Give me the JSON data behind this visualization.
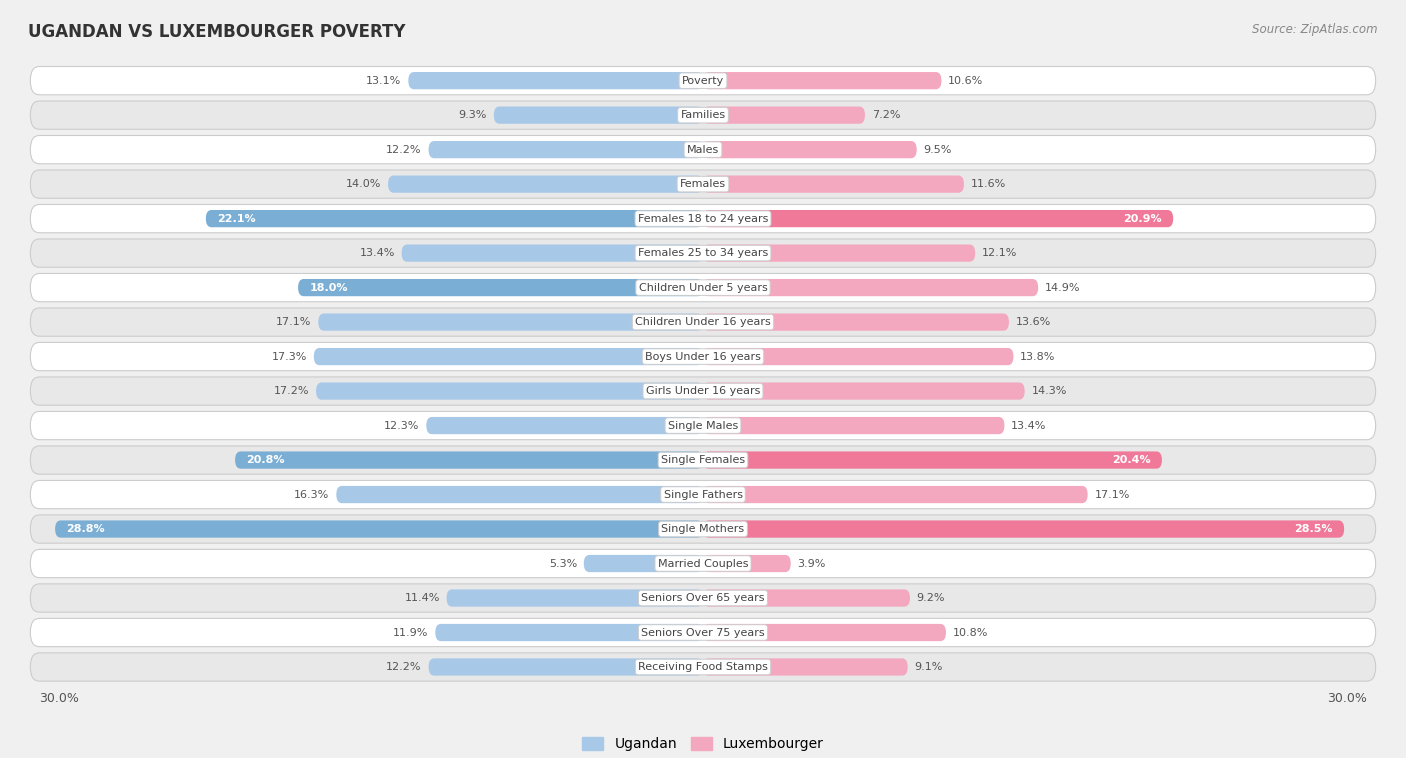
{
  "title": "UGANDAN VS LUXEMBOURGER POVERTY",
  "source": "Source: ZipAtlas.com",
  "categories": [
    "Poverty",
    "Families",
    "Males",
    "Females",
    "Females 18 to 24 years",
    "Females 25 to 34 years",
    "Children Under 5 years",
    "Children Under 16 years",
    "Boys Under 16 years",
    "Girls Under 16 years",
    "Single Males",
    "Single Females",
    "Single Fathers",
    "Single Mothers",
    "Married Couples",
    "Seniors Over 65 years",
    "Seniors Over 75 years",
    "Receiving Food Stamps"
  ],
  "ugandan": [
    13.1,
    9.3,
    12.2,
    14.0,
    22.1,
    13.4,
    18.0,
    17.1,
    17.3,
    17.2,
    12.3,
    20.8,
    16.3,
    28.8,
    5.3,
    11.4,
    11.9,
    12.2
  ],
  "luxembourger": [
    10.6,
    7.2,
    9.5,
    11.6,
    20.9,
    12.1,
    14.9,
    13.6,
    13.8,
    14.3,
    13.4,
    20.4,
    17.1,
    28.5,
    3.9,
    9.2,
    10.8,
    9.1
  ],
  "ugandan_color_normal": "#a8c8e8",
  "ugandan_color_highlight": "#7aaed4",
  "luxembourger_color_normal": "#f4a8c0",
  "luxembourger_color_highlight": "#f07898",
  "background_color": "#f0f0f0",
  "row_white_color": "#ffffff",
  "row_gray_color": "#e8e8e8",
  "bar_height": 0.5,
  "xlim": 30.0,
  "highlight_threshold": 17.5,
  "legend_ugandan": "Ugandan",
  "legend_luxembourger": "Luxembourger"
}
